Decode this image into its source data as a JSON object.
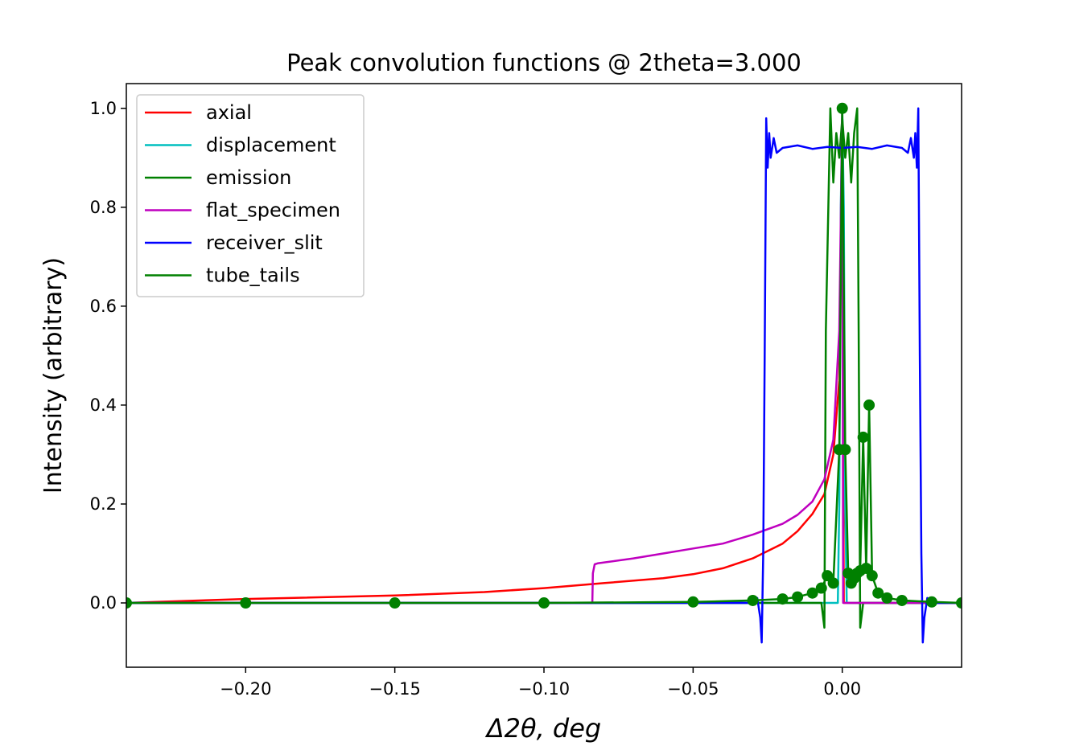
{
  "chart_data": {
    "type": "line",
    "title": "Peak convolution functions @ 2theta=3.000",
    "xlabel": "Δ2θ, deg",
    "ylabel": "Intensity (arbitrary)",
    "xlim": [
      -0.24,
      0.04
    ],
    "ylim": [
      -0.13,
      1.05
    ],
    "xticks": [
      -0.2,
      -0.15,
      -0.1,
      -0.05,
      0.0
    ],
    "xtick_labels": [
      "−0.20",
      "−0.15",
      "−0.10",
      "−0.05",
      "0.00"
    ],
    "yticks": [
      0.0,
      0.2,
      0.4,
      0.6,
      0.8,
      1.0
    ],
    "ytick_labels": [
      "0.0",
      "0.2",
      "0.4",
      "0.6",
      "0.8",
      "1.0"
    ],
    "legend_position": "top-left",
    "grid": false,
    "series": [
      {
        "name": "axial",
        "color": "#ff0000",
        "x": [
          -0.24,
          -0.2,
          -0.15,
          -0.12,
          -0.1,
          -0.08,
          -0.06,
          -0.05,
          -0.04,
          -0.03,
          -0.02,
          -0.015,
          -0.01,
          -0.006,
          -0.003,
          -0.001,
          0.0,
          0.0002,
          0.0005,
          0.04
        ],
        "y": [
          0.0,
          0.008,
          0.015,
          0.022,
          0.03,
          0.04,
          0.05,
          0.058,
          0.07,
          0.09,
          0.12,
          0.145,
          0.18,
          0.22,
          0.3,
          0.45,
          1.0,
          0.5,
          0.0,
          0.0
        ]
      },
      {
        "name": "displacement",
        "color": "#00bfbf",
        "x": [
          -0.24,
          -0.0015,
          -0.001,
          -0.0005,
          0.0,
          0.0005,
          0.001,
          0.0015,
          0.04
        ],
        "y": [
          0.0,
          0.0,
          0.2,
          0.8,
          1.0,
          0.8,
          0.2,
          0.0,
          0.0
        ]
      },
      {
        "name": "emission",
        "color": "#008000",
        "x": [
          -0.24,
          -0.05,
          -0.007,
          -0.006,
          -0.0055,
          -0.004,
          -0.003,
          -0.002,
          -0.001,
          0.0,
          0.001,
          0.002,
          0.003,
          0.004,
          0.005,
          0.0055,
          0.006,
          0.007,
          0.04
        ],
        "y": [
          0.0,
          0.0,
          0.0,
          -0.05,
          0.55,
          1.0,
          0.85,
          0.95,
          0.9,
          0.98,
          0.9,
          0.95,
          0.85,
          0.95,
          1.0,
          0.55,
          -0.05,
          0.0,
          0.0
        ]
      },
      {
        "name": "flat_specimen",
        "color": "#bf00bf",
        "x": [
          -0.24,
          -0.0838,
          -0.0836,
          -0.083,
          -0.082,
          -0.07,
          -0.06,
          -0.05,
          -0.04,
          -0.03,
          -0.02,
          -0.015,
          -0.01,
          -0.006,
          -0.003,
          -0.001,
          0.0,
          0.0003,
          0.04
        ],
        "y": [
          0.0,
          0.0,
          0.06,
          0.078,
          0.08,
          0.09,
          0.1,
          0.11,
          0.12,
          0.138,
          0.16,
          0.178,
          0.205,
          0.25,
          0.33,
          0.55,
          1.0,
          0.0,
          0.0
        ]
      },
      {
        "name": "receiver_slit",
        "color": "#0000ff",
        "x": [
          -0.24,
          -0.03,
          -0.0285,
          -0.0275,
          -0.027,
          -0.0265,
          -0.026,
          -0.0255,
          -0.025,
          -0.0245,
          -0.024,
          -0.023,
          -0.022,
          -0.02,
          -0.015,
          -0.01,
          -0.005,
          0.0,
          0.005,
          0.01,
          0.015,
          0.02,
          0.022,
          0.023,
          0.024,
          0.0245,
          0.025,
          0.0255,
          0.026,
          0.0265,
          0.027,
          0.0275,
          0.0285,
          0.03,
          0.04
        ],
        "y": [
          0.0,
          0.0,
          0.01,
          -0.03,
          -0.08,
          0.1,
          0.5,
          0.98,
          0.88,
          0.95,
          0.9,
          0.94,
          0.91,
          0.92,
          0.925,
          0.918,
          0.922,
          0.92,
          0.922,
          0.918,
          0.925,
          0.92,
          0.91,
          0.94,
          0.9,
          0.95,
          0.88,
          1.0,
          0.5,
          0.1,
          -0.08,
          -0.03,
          0.01,
          0.0,
          0.0
        ]
      },
      {
        "name": "tube_tails",
        "color": "#008000",
        "markers": true,
        "x": [
          -0.24,
          -0.2,
          -0.15,
          -0.1,
          -0.05,
          -0.03,
          -0.02,
          -0.015,
          -0.01,
          -0.007,
          -0.005,
          -0.003,
          -0.001,
          0.0,
          0.001,
          0.002,
          0.003,
          0.004,
          0.005,
          0.006,
          0.007,
          0.008,
          0.009,
          0.01,
          0.012,
          0.015,
          0.02,
          0.03,
          0.04
        ],
        "y": [
          0.0,
          0.0,
          0.0,
          0.0,
          0.002,
          0.005,
          0.008,
          0.012,
          0.02,
          0.03,
          0.055,
          0.04,
          0.31,
          1.0,
          0.31,
          0.06,
          0.04,
          0.05,
          0.06,
          0.065,
          0.335,
          0.07,
          0.4,
          0.055,
          0.02,
          0.01,
          0.005,
          0.002,
          0.0
        ]
      }
    ]
  }
}
